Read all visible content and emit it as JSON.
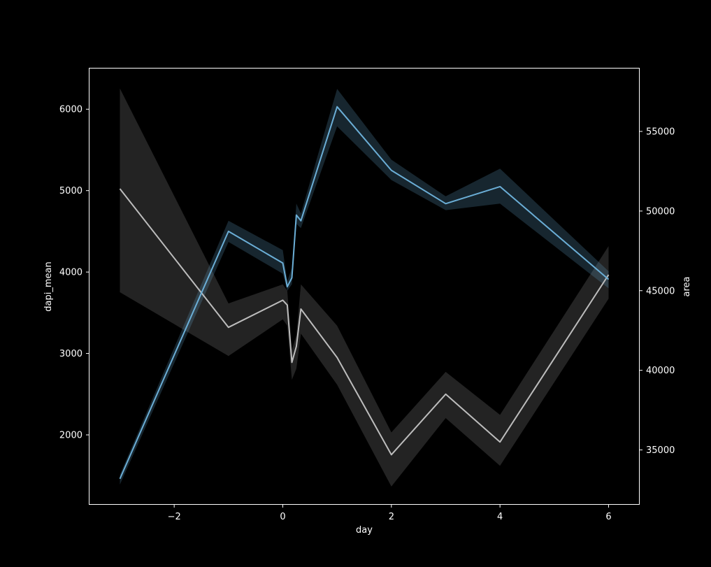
{
  "chart_data": {
    "type": "line",
    "xlabel": "day",
    "ylabel_left": "dapi_mean",
    "ylabel_right": "area",
    "xlim": [
      -3.56,
      6.56
    ],
    "ylim_left": [
      1150,
      6500
    ],
    "ylim_right": [
      31600,
      58950
    ],
    "x_ticks": [
      -2,
      0,
      2,
      4,
      6
    ],
    "x_tick_labels": [
      "−2",
      "0",
      "2",
      "4",
      "6"
    ],
    "y_left_ticks": [
      2000,
      3000,
      4000,
      5000,
      6000
    ],
    "y_left_tick_labels": [
      "2000",
      "3000",
      "4000",
      "5000",
      "6000"
    ],
    "y_right_ticks": [
      35000,
      40000,
      45000,
      50000,
      55000
    ],
    "y_right_tick_labels": [
      "35000",
      "40000",
      "45000",
      "50000",
      "55000"
    ],
    "grid": false,
    "colors": {
      "background": "#000000",
      "frame": "#ffffff",
      "text": "#ffffff",
      "dapi_mean": "#6baed6",
      "area": "#bdbdbd"
    },
    "series": [
      {
        "key": "dapi_mean",
        "axis": "left",
        "x": [
          -3,
          -1,
          0,
          0.083,
          0.167,
          0.25,
          0.333,
          1,
          2,
          3,
          4,
          6
        ],
        "values": [
          1460,
          4500,
          4110,
          3820,
          3930,
          4700,
          4630,
          6030,
          5250,
          4840,
          5050,
          3910
        ],
        "ci_low": [
          1390,
          4370,
          3980,
          3770,
          3850,
          4590,
          4540,
          5790,
          5130,
          4760,
          4840,
          3800
        ],
        "ci_high": [
          1510,
          4630,
          4270,
          3890,
          4050,
          4840,
          4720,
          6250,
          5380,
          4930,
          5270,
          4010
        ]
      },
      {
        "key": "area",
        "axis": "right",
        "x": [
          -3,
          -1,
          0,
          0.083,
          0.167,
          0.25,
          0.333,
          1,
          2,
          3,
          4,
          6
        ],
        "values": [
          51400,
          42700,
          44400,
          44100,
          40500,
          41500,
          43850,
          40800,
          34700,
          38500,
          35500,
          46000
        ],
        "ci_low": [
          44900,
          40900,
          43200,
          42800,
          39400,
          40100,
          42300,
          39100,
          32700,
          37000,
          34000,
          44500
        ],
        "ci_high": [
          57700,
          44200,
          45400,
          45000,
          41300,
          42200,
          45400,
          42800,
          36100,
          39900,
          37200,
          47800
        ]
      }
    ]
  }
}
